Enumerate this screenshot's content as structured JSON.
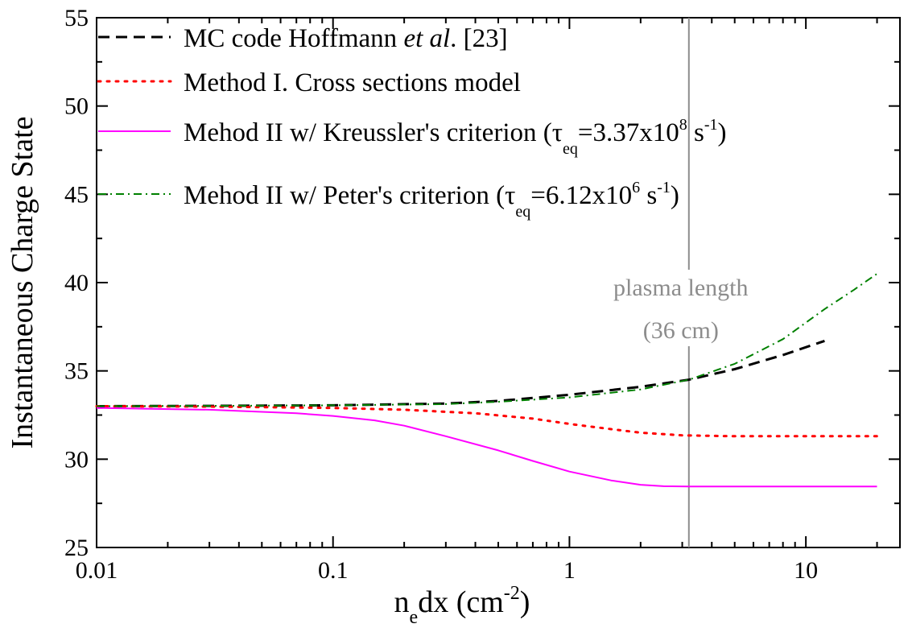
{
  "chart_data": {
    "type": "line",
    "title": "",
    "xlabel": {
      "base": "n",
      "sub": "e",
      "rest": "dx (cm",
      "sup": "-2",
      "close": ")"
    },
    "ylabel": "Instantaneous Charge State",
    "x_scale": "log",
    "xlim": [
      0.01,
      25
    ],
    "ylim": [
      25,
      55
    ],
    "x_ticks": [
      0.01,
      0.1,
      1,
      10
    ],
    "x_tick_labels": [
      "0.01",
      "0.1",
      "1",
      "10"
    ],
    "y_ticks": [
      25,
      30,
      35,
      40,
      45,
      50,
      55
    ],
    "y_tick_labels": [
      "25",
      "30",
      "35",
      "40",
      "45",
      "50",
      "55"
    ],
    "grid": false,
    "legend_position": "top-left",
    "annotation": {
      "x": 3.2,
      "line1": "plasma length",
      "line2": "(36 cm)",
      "color": "#8c8c8c"
    },
    "series": [
      {
        "id": "mc",
        "legend_parts": [
          {
            "t": "MC code Hoffmann "
          },
          {
            "t": "et al",
            "style": "italic"
          },
          {
            "t": ". [23]"
          }
        ],
        "color": "#000000",
        "dash": "dashed",
        "x": [
          0.01,
          0.03,
          0.1,
          0.3,
          0.5,
          1,
          2,
          3.2,
          5,
          8,
          12
        ],
        "y": [
          33.0,
          33.02,
          33.05,
          33.15,
          33.3,
          33.65,
          34.1,
          34.5,
          35.1,
          35.9,
          36.7
        ]
      },
      {
        "id": "method1",
        "legend_parts": [
          {
            "t": "Method I. Cross sections model"
          }
        ],
        "color": "#ff0000",
        "dash": "dotted",
        "x": [
          0.01,
          0.03,
          0.1,
          0.2,
          0.4,
          0.7,
          1,
          1.5,
          2,
          3,
          5,
          10,
          20
        ],
        "y": [
          33.0,
          32.98,
          32.9,
          32.8,
          32.6,
          32.3,
          32.0,
          31.7,
          31.5,
          31.35,
          31.3,
          31.3,
          31.3
        ]
      },
      {
        "id": "method2k",
        "legend_parts": [
          {
            "t": "Mehod II w/ Kreussler's criterion ("
          },
          {
            "t": "τ"
          },
          {
            "t": "eq",
            "style": "sub"
          },
          {
            "t": "=3.37x10"
          },
          {
            "t": "8",
            "style": "sup"
          },
          {
            "t": " s"
          },
          {
            "t": "-1",
            "style": "sup"
          },
          {
            "t": ")"
          }
        ],
        "color": "#ff00ff",
        "dash": "solid",
        "x": [
          0.01,
          0.03,
          0.07,
          0.1,
          0.15,
          0.2,
          0.3,
          0.5,
          0.7,
          1,
          1.5,
          2,
          2.5,
          3.2,
          5,
          10,
          20
        ],
        "y": [
          32.9,
          32.8,
          32.6,
          32.45,
          32.2,
          31.9,
          31.3,
          30.5,
          29.9,
          29.3,
          28.8,
          28.55,
          28.47,
          28.45,
          28.45,
          28.45,
          28.45
        ]
      },
      {
        "id": "method2p",
        "legend_parts": [
          {
            "t": "Mehod II w/ Peter's criterion ("
          },
          {
            "t": "τ"
          },
          {
            "t": "eq",
            "style": "sub"
          },
          {
            "t": "=6.12x10"
          },
          {
            "t": "6",
            "style": "sup"
          },
          {
            "t": " s"
          },
          {
            "t": "-1",
            "style": "sup"
          },
          {
            "t": ")"
          }
        ],
        "color": "#008000",
        "dash": "dashdot",
        "x": [
          0.01,
          0.03,
          0.1,
          0.3,
          0.5,
          1,
          2,
          3.2,
          5,
          8,
          12,
          16,
          20
        ],
        "y": [
          33.0,
          33.02,
          33.05,
          33.12,
          33.25,
          33.5,
          33.95,
          34.5,
          35.4,
          36.8,
          38.5,
          39.6,
          40.5
        ]
      }
    ]
  }
}
